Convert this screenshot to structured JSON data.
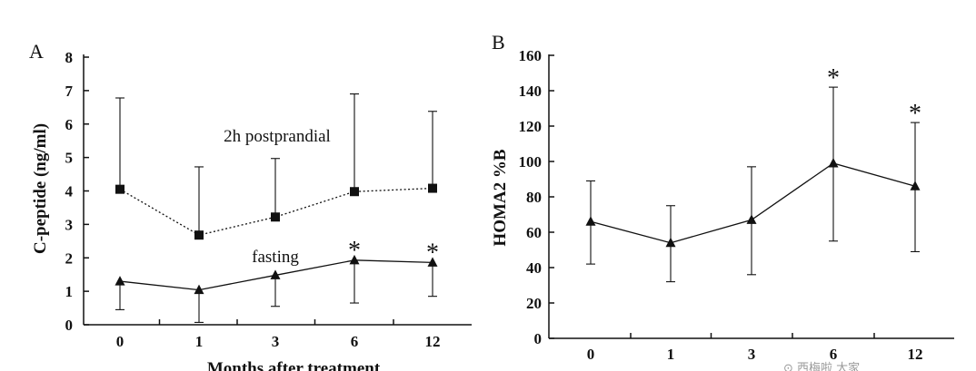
{
  "chart_data": [
    {
      "panel": "A",
      "type": "line",
      "xlabel": "Months after treatment",
      "ylabel": "C-peptide (ng/ml)",
      "categories": [
        "0",
        "1",
        "3",
        "6",
        "12"
      ],
      "ylim": [
        0,
        8
      ],
      "yticks": [
        "0",
        "1",
        "2",
        "3",
        "4",
        "5",
        "6",
        "7",
        "8"
      ],
      "series": [
        {
          "name": "2h postprandial",
          "marker": "square",
          "line": "dotted",
          "values": [
            4.05,
            2.68,
            3.22,
            3.98,
            4.08
          ],
          "error_upper": [
            6.78,
            4.72,
            4.97,
            6.9,
            6.38
          ]
        },
        {
          "name": "fasting",
          "marker": "triangle",
          "line": "solid",
          "values": [
            1.3,
            1.04,
            1.48,
            1.93,
            1.86
          ],
          "error_lower": [
            0.45,
            0.07,
            0.55,
            0.65,
            0.85
          ]
        }
      ],
      "annotations": [
        {
          "text": "*",
          "category": "6"
        },
        {
          "text": "*",
          "category": "12"
        }
      ]
    },
    {
      "panel": "B",
      "type": "line",
      "xlabel": "",
      "ylabel": "HOMA2 %B",
      "categories": [
        "0",
        "1",
        "3",
        "6",
        "12"
      ],
      "ylim": [
        0,
        160
      ],
      "yticks": [
        "0",
        "20",
        "40",
        "60",
        "80",
        "100",
        "120",
        "140",
        "160"
      ],
      "series": [
        {
          "name": "HOMA2 %B",
          "marker": "triangle",
          "line": "solid",
          "values": [
            66,
            54,
            67,
            99,
            86
          ],
          "error_upper": [
            89,
            75,
            97,
            142,
            122
          ],
          "error_lower": [
            42,
            32,
            36,
            55,
            49
          ]
        }
      ],
      "annotations": [
        {
          "text": "*",
          "category": "6"
        },
        {
          "text": "*",
          "category": "12"
        }
      ]
    }
  ],
  "watermark": "⊙ 西梅啦 大家"
}
